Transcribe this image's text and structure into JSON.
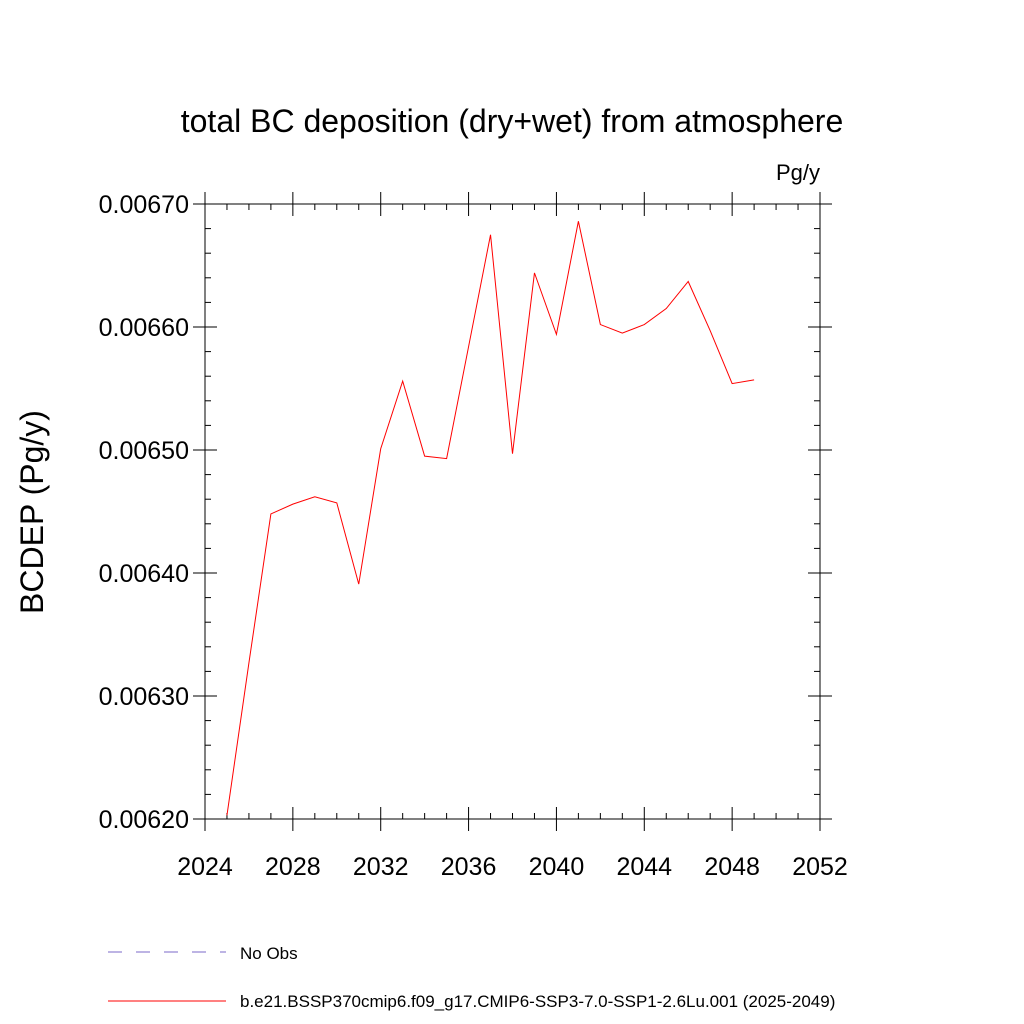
{
  "chart_data": {
    "type": "line",
    "title": "total BC deposition (dry+wet) from atmosphere",
    "units_label": "Pg/y",
    "ylabel": "BCDEP  (Pg/y)",
    "xlabel": "",
    "xlim": [
      2024,
      2052
    ],
    "ylim": [
      0.0062,
      0.0067
    ],
    "x_ticks": [
      "2024",
      "2028",
      "2032",
      "2036",
      "2040",
      "2044",
      "2048",
      "2052"
    ],
    "y_ticks": [
      "0.00620",
      "0.00630",
      "0.00640",
      "0.00650",
      "0.00660",
      "0.00670"
    ],
    "grid": false,
    "legend_position": "bottom",
    "legend": [
      {
        "label": "No Obs",
        "color": "#7b68c8",
        "style": "dashed"
      },
      {
        "label": "b.e21.BSSP370cmip6.f09_g17.CMIP6-SSP3-7.0-SSP1-2.6Lu.001 (2025-2049)",
        "color": "#ff0000",
        "style": "solid"
      }
    ],
    "series": [
      {
        "name": "b.e21.BSSP370cmip6.f09_g17.CMIP6-SSP3-7.0-SSP1-2.6Lu.001 (2025-2049)",
        "color": "#ff0000",
        "x": [
          2025,
          2026,
          2027,
          2028,
          2029,
          2030,
          2031,
          2032,
          2033,
          2034,
          2035,
          2036,
          2037,
          2038,
          2039,
          2040,
          2041,
          2042,
          2043,
          2044,
          2045,
          2046,
          2047,
          2048,
          2049
        ],
        "values": [
          0.006203,
          0.006327,
          0.006448,
          0.006456,
          0.006462,
          0.006457,
          0.006391,
          0.006501,
          0.006556,
          0.006495,
          0.006493,
          0.006584,
          0.006675,
          0.006497,
          0.006644,
          0.006594,
          0.006686,
          0.006602,
          0.006595,
          0.006602,
          0.006615,
          0.006637,
          0.006597,
          0.006554,
          0.006557
        ]
      }
    ]
  }
}
